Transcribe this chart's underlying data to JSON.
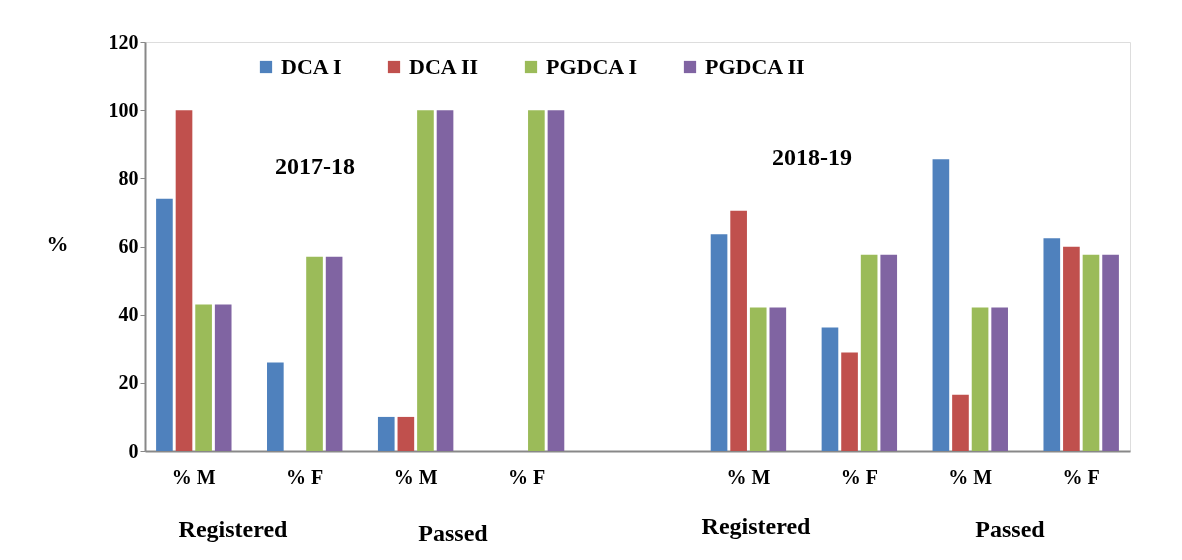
{
  "chart_data": {
    "type": "bar",
    "ylabel": "%",
    "categories": [
      "% M",
      "% F",
      "% M",
      "% F",
      null,
      "% M",
      "% F",
      "% M",
      "% F"
    ],
    "series": [
      {
        "name": "DCA I",
        "color": "#4f81bd",
        "values": [
          74,
          26,
          10,
          0,
          null,
          63.6,
          36.2,
          85.6,
          62.4
        ]
      },
      {
        "name": "DCA II",
        "color": "#c0504d",
        "values": [
          100,
          0,
          10,
          0,
          null,
          70.5,
          28.9,
          16.5,
          59.9
        ]
      },
      {
        "name": "PGDCA I",
        "color": "#9bbb59",
        "values": [
          43,
          57,
          100,
          100,
          null,
          42.1,
          57.6,
          42.1,
          57.6
        ]
      },
      {
        "name": "PGDCA II",
        "color": "#8064a2",
        "values": [
          43,
          57,
          100,
          100,
          null,
          42.1,
          57.6,
          42.1,
          57.6
        ]
      }
    ],
    "ylim": [
      0,
      120
    ],
    "yticks": [
      0,
      20,
      40,
      60,
      80,
      100,
      120
    ],
    "grid": false,
    "legend": "top",
    "annotations": [
      "2017-18",
      "2018-19",
      "Registered",
      "Passed",
      "Registered",
      "Passed"
    ]
  }
}
